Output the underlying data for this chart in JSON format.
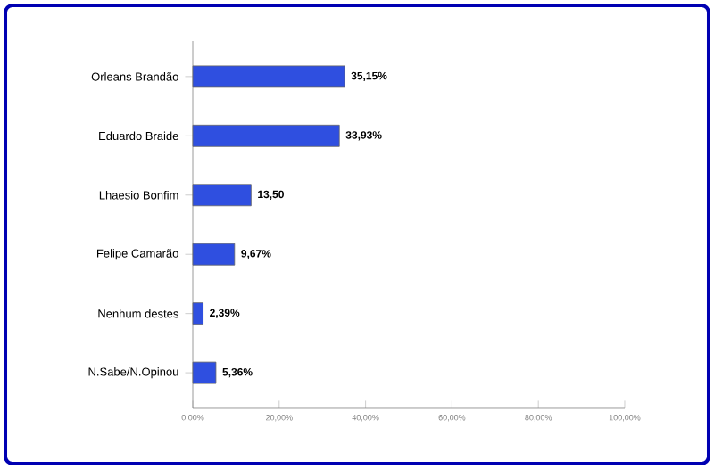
{
  "chart_data": {
    "type": "bar",
    "orientation": "horizontal",
    "categories": [
      "Orleans Brandão",
      "Eduardo Braide",
      "Lhaesio Bonfim",
      "Felipe Camarão",
      "Nenhum destes",
      "N.Sabe/N.Opinou"
    ],
    "values": [
      35.15,
      33.93,
      13.5,
      9.67,
      2.39,
      5.36
    ],
    "value_labels": [
      "35,15%",
      "33,93%",
      "13,50",
      "9,67%",
      "2,39%",
      "5,36%"
    ],
    "color": "#2f4fe0",
    "xlim": [
      0,
      100
    ],
    "xticks": [
      {
        "value": 0,
        "label": "0,00%"
      },
      {
        "value": 20,
        "label": "20,00%"
      },
      {
        "value": 40,
        "label": "40,00%"
      },
      {
        "value": 60,
        "label": "60,00%"
      },
      {
        "value": 80,
        "label": "80,00%"
      },
      {
        "value": 100,
        "label": "100,00%"
      }
    ],
    "grid": false
  }
}
